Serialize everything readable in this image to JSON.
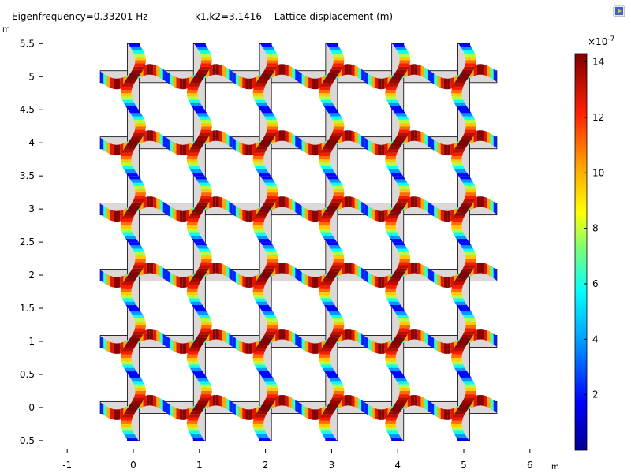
{
  "header": {
    "eigenfrequency": "Eigenfrequency=0.33201 Hz",
    "plot_title": "k1,k2=3.1416 -  Lattice displacement (m)",
    "toolbar_icon": "plot-window-icon"
  },
  "colorbar": {
    "exponent": "×10",
    "exponent_power": "-7",
    "ticks": [
      "14",
      "12",
      "10",
      "8",
      "6",
      "4",
      "2"
    ],
    "range": [
      0,
      14.3
    ],
    "colormap": "rainbow"
  },
  "axes": {
    "x_unit": "m",
    "y_unit": "m",
    "x_ticks": [
      "-1",
      "0",
      "1",
      "2",
      "3",
      "4",
      "5",
      "6"
    ],
    "y_ticks": [
      "5.5",
      "5",
      "4.5",
      "4",
      "3.5",
      "3",
      "2.5",
      "2",
      "1.5",
      "1",
      "0.5",
      "0",
      "-0.5"
    ],
    "x_range": [
      -1.42,
      6.42
    ],
    "y_range": [
      -0.68,
      5.73
    ]
  },
  "lattice": {
    "vertical_beams_x": [
      0,
      1,
      2,
      3,
      4,
      5
    ],
    "horizontal_beams_y": [
      0,
      1,
      2,
      3,
      4,
      5
    ],
    "beam_span": [
      -0.5,
      5.5
    ],
    "beam_color": "#dcd8d8",
    "max_displacement": 14.3
  }
}
